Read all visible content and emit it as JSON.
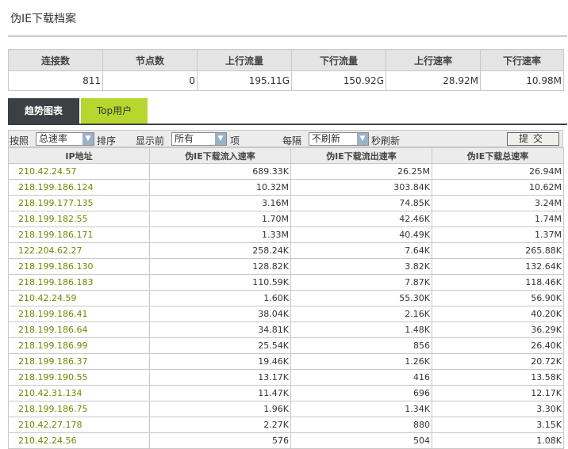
{
  "page": {
    "title": "伪IE下载档案"
  },
  "summary": {
    "headers": [
      "连接数",
      "节点数",
      "上行流量",
      "下行流量",
      "上行速率",
      "下行速率"
    ],
    "values": [
      "811",
      "0",
      "195.11G",
      "150.92G",
      "28.92M",
      "10.98M"
    ]
  },
  "tabs": [
    {
      "label": "趋势图表",
      "active": true
    },
    {
      "label": "Top用户",
      "active": false
    }
  ],
  "filters": {
    "by_label": "按照",
    "sort_value": "总速率",
    "sort_suffix": "排序",
    "show_label": "显示前",
    "count_value": "所有",
    "count_suffix": "项",
    "every_label": "每隔",
    "refresh_value": "不刷新",
    "refresh_suffix": "秒刷新",
    "submit_label": "提交"
  },
  "table": {
    "headers": [
      "IP地址",
      "伪IE下载流入速率",
      "伪IE下载流出速率",
      "伪IE下载总速率"
    ],
    "rows": [
      [
        "210.42.24.57",
        "689.33K",
        "26.25M",
        "26.94M"
      ],
      [
        "218.199.186.124",
        "10.32M",
        "303.84K",
        "10.62M"
      ],
      [
        "218.199.177.135",
        "3.16M",
        "74.85K",
        "3.24M"
      ],
      [
        "218.199.182.55",
        "1.70M",
        "42.46K",
        "1.74M"
      ],
      [
        "218.199.186.171",
        "1.33M",
        "40.49K",
        "1.37M"
      ],
      [
        "122.204.62.27",
        "258.24K",
        "7.64K",
        "265.88K"
      ],
      [
        "218.199.186.130",
        "128.82K",
        "3.82K",
        "132.64K"
      ],
      [
        "218.199.186.183",
        "110.59K",
        "7.87K",
        "118.46K"
      ],
      [
        "210.42.24.59",
        "1.60K",
        "55.30K",
        "56.90K"
      ],
      [
        "218.199.186.41",
        "38.04K",
        "2.16K",
        "40.20K"
      ],
      [
        "218.199.186.64",
        "34.81K",
        "1.48K",
        "36.29K"
      ],
      [
        "218.199.186.99",
        "25.54K",
        "856",
        "26.40K"
      ],
      [
        "218.199.186.37",
        "19.46K",
        "1.26K",
        "20.72K"
      ],
      [
        "218.199.190.55",
        "13.17K",
        "416",
        "13.58K"
      ],
      [
        "210.42.31.134",
        "11.47K",
        "696",
        "12.17K"
      ],
      [
        "218.199.186.75",
        "1.96K",
        "1.34K",
        "3.30K"
      ],
      [
        "210.42.27.178",
        "2.27K",
        "880",
        "3.15K"
      ],
      [
        "210.42.24.56",
        "576",
        "504",
        "1.08K"
      ]
    ]
  }
}
